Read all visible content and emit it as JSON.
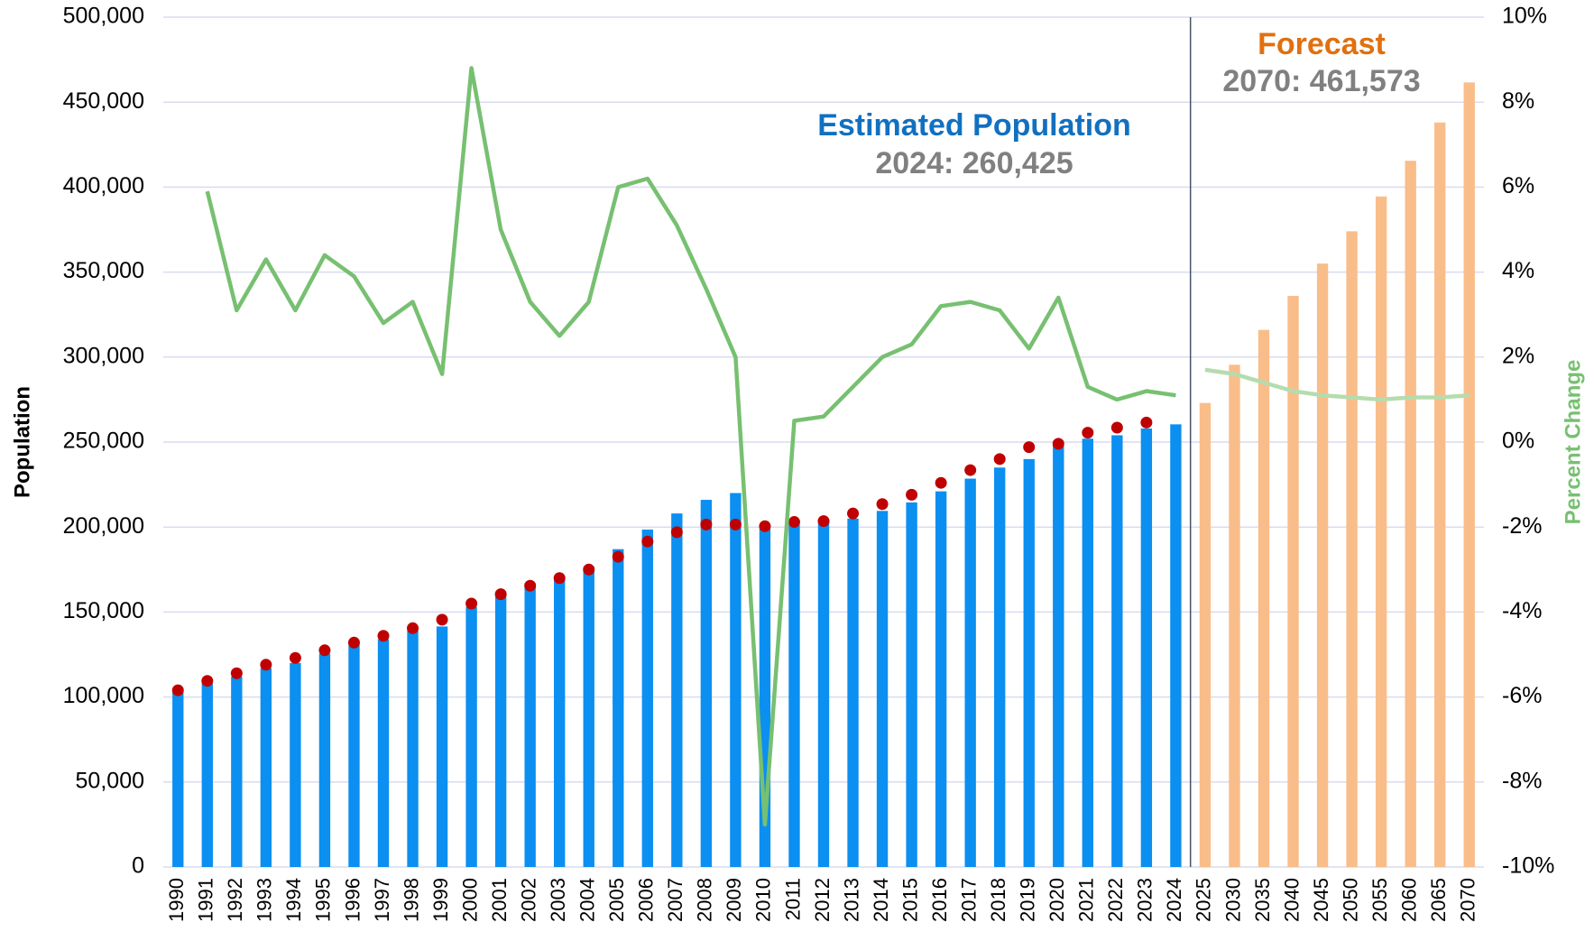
{
  "chart_data": {
    "type": "bar",
    "y_label": "Population",
    "y2_label": "Percent Change",
    "annotations": [
      "Estimated Population",
      "2024: 260,425",
      "Forecast",
      "2070: 461,573"
    ],
    "categories": [
      "1990",
      "1991",
      "1992",
      "1993",
      "1994",
      "1995",
      "1996",
      "1997",
      "1998",
      "1999",
      "2000",
      "2001",
      "2002",
      "2003",
      "2004",
      "2005",
      "2006",
      "2007",
      "2008",
      "2009",
      "2010",
      "2011",
      "2012",
      "2013",
      "2014",
      "2015",
      "2016",
      "2017",
      "2018",
      "2019",
      "2020",
      "2021",
      "2022",
      "2023",
      "2024",
      "2025",
      "2030",
      "2035",
      "2040",
      "2045",
      "2050",
      "2055",
      "2060",
      "2065",
      "2070"
    ],
    "series": [
      {
        "type": "bar",
        "color": "#0b8ff0",
        "values": [
          103500,
          108000,
          112000,
          117000,
          120000,
          125500,
          131000,
          134000,
          139500,
          141500,
          153000,
          161500,
          167000,
          171000,
          176500,
          187000,
          198500,
          208000,
          216000,
          220000,
          201000,
          201500,
          203000,
          205000,
          209500,
          214500,
          221000,
          228500,
          235000,
          240000,
          249000,
          252000,
          254000,
          258000,
          260425,
          null,
          null,
          null,
          null,
          null,
          null,
          null,
          null,
          null,
          null
        ]
      },
      {
        "type": "bar",
        "color": "#f9bd8a",
        "values": [
          null,
          null,
          null,
          null,
          null,
          null,
          null,
          null,
          null,
          null,
          null,
          null,
          null,
          null,
          null,
          null,
          null,
          null,
          null,
          null,
          null,
          null,
          null,
          null,
          null,
          null,
          null,
          null,
          null,
          null,
          null,
          null,
          null,
          null,
          null,
          273000,
          295500,
          316000,
          336000,
          355000,
          374000,
          394500,
          415500,
          438000,
          461573
        ]
      },
      {
        "type": "scatter",
        "color": "#c00000",
        "values": [
          104000,
          109500,
          114000,
          119000,
          123000,
          127500,
          132000,
          136000,
          140500,
          145500,
          155000,
          160500,
          165500,
          170000,
          175000,
          182500,
          191500,
          197000,
          201500,
          201500,
          200500,
          203000,
          203500,
          208000,
          213500,
          219000,
          226000,
          233500,
          240000,
          247000,
          249000,
          255500,
          258500,
          261500,
          null,
          null,
          null,
          null,
          null,
          null,
          null,
          null,
          null,
          null,
          null
        ]
      },
      {
        "type": "line",
        "axis": "y2",
        "color": "#77c071",
        "values": [
          null,
          5.9,
          3.1,
          4.3,
          3.1,
          4.4,
          3.9,
          2.8,
          3.3,
          1.6,
          8.8,
          5.0,
          3.3,
          2.5,
          3.3,
          6.0,
          6.2,
          5.1,
          3.6,
          2.0,
          -9.0,
          0.5,
          0.6,
          1.3,
          2.0,
          2.3,
          3.2,
          3.3,
          3.1,
          2.2,
          3.4,
          1.3,
          1.0,
          1.2,
          1.1,
          null,
          null,
          null,
          null,
          null,
          null,
          null,
          null,
          null,
          null
        ]
      },
      {
        "type": "line",
        "axis": "y2",
        "color": "#b5dcae",
        "values": [
          null,
          null,
          null,
          null,
          null,
          null,
          null,
          null,
          null,
          null,
          null,
          null,
          null,
          null,
          null,
          null,
          null,
          null,
          null,
          null,
          null,
          null,
          null,
          null,
          null,
          null,
          null,
          null,
          null,
          null,
          null,
          null,
          null,
          null,
          null,
          1.7,
          1.6,
          1.4,
          1.2,
          1.1,
          1.05,
          1.0,
          1.05,
          1.05,
          1.1
        ]
      }
    ],
    "ylim": [
      0,
      500000
    ],
    "yticks": [
      0,
      {
        "value": 50000,
        "label": "50,000"
      },
      {
        "value": 100000,
        "label": "100,000"
      },
      {
        "value": 150000,
        "label": "150,000"
      },
      {
        "value": 200000,
        "label": "200,000"
      },
      {
        "value": 250000,
        "label": "250,000"
      },
      {
        "value": 300000,
        "label": "300,000"
      },
      {
        "value": 350000,
        "label": "350,000"
      },
      {
        "value": 400000,
        "label": "400,000"
      },
      {
        "value": 450000,
        "label": "450,000"
      },
      {
        "value": 500000,
        "label": "500,000"
      }
    ],
    "y2lim": [
      -10,
      10
    ],
    "y2ticks": [
      {
        "value": -10,
        "label": "-10%"
      },
      {
        "value": -8,
        "label": "-8%"
      },
      {
        "value": -6,
        "label": "-6%"
      },
      {
        "value": -4,
        "label": "-4%"
      },
      {
        "value": -2,
        "label": "-2%"
      },
      {
        "value": 0,
        "label": "0%"
      },
      {
        "value": 2,
        "label": "2%"
      },
      {
        "value": 4,
        "label": "4%"
      },
      {
        "value": 6,
        "label": "6%"
      },
      {
        "value": 8,
        "label": "8%"
      },
      {
        "value": 10,
        "label": "10%"
      }
    ],
    "grid": true
  }
}
